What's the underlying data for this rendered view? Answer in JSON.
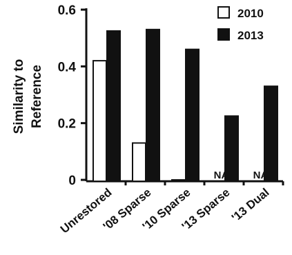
{
  "chart_data": {
    "type": "bar",
    "ylabel": [
      "Similarity to",
      "Reference"
    ],
    "ylim": [
      0,
      0.6
    ],
    "yticks": [
      "0",
      "0.2",
      "0.4",
      "0.6"
    ],
    "categories": [
      "Unrestored",
      "'08 Sparse",
      "'10 Sparse",
      "'13 Sparse",
      "'13 Dual"
    ],
    "series": [
      {
        "name": "2010",
        "fill": "#ffffff",
        "values": [
          0.42,
          0.13,
          0.0,
          null,
          null
        ]
      },
      {
        "name": "2013",
        "fill": "#111111",
        "values": [
          0.525,
          0.53,
          0.46,
          0.225,
          0.33
        ]
      }
    ],
    "missing_label": "NA",
    "legend_position": "top-right",
    "grid": false
  }
}
